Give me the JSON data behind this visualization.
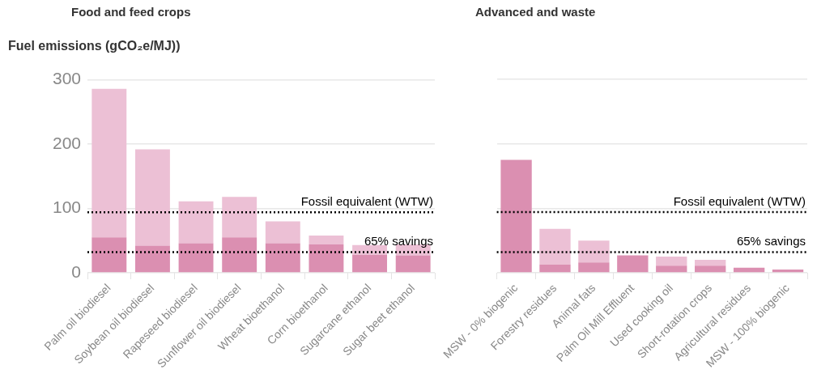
{
  "chart_data": [
    {
      "type": "bar",
      "title": "Food and feed crops",
      "ylabel": "Fuel emissions (gCO₂e/MJ))",
      "stacked": true,
      "grid": "y",
      "legend": false,
      "categories": [
        "Palm oil biodiesel",
        "Soybean oil biodiesel",
        "Rapeseed biodiesel",
        "Sunflower oil biodiesel",
        "Wheat bioethanol",
        "Corn bioethanol",
        "Sugarcane ethanol",
        "Sugar beet ethanol"
      ],
      "series": [
        {
          "color": "#db8fb1",
          "values": [
            55,
            42,
            46,
            55,
            46,
            44,
            28,
            27
          ]
        },
        {
          "color": "#ecc0d5",
          "values": [
            231,
            150,
            65,
            63,
            34,
            14,
            15,
            17
          ]
        }
      ],
      "ylim": [
        0,
        300
      ],
      "yticks": [
        0,
        100,
        200,
        300
      ],
      "ref_lines": [
        {
          "axis": "y",
          "value": 94,
          "label": "Fossil equivalent (WTW)",
          "color": "#000000",
          "line_style": "dotted"
        },
        {
          "axis": "y",
          "value": 32,
          "label": "65% savings",
          "color": "#000000",
          "line_style": "dotted"
        }
      ]
    },
    {
      "type": "bar",
      "title": "Advanced and waste",
      "stacked": true,
      "grid": "y",
      "legend": false,
      "tick_labels": "x",
      "categories": [
        "MSW - 0% biogenic",
        "Forestry residues",
        "Animal fats",
        "Palm Oil Mill Effluent",
        "Used cooking oil",
        "Short-rotation crops",
        "Agricultural residues",
        "MSW - 100% biogenic"
      ],
      "series": [
        {
          "color": "#db8fb1",
          "values": [
            175,
            13,
            16,
            27,
            11,
            11,
            8,
            5
          ]
        },
        {
          "color": "#ecc0d5",
          "values": [
            0,
            55,
            34,
            0,
            14,
            9,
            0,
            0
          ]
        }
      ],
      "ylim": [
        0,
        300
      ],
      "yticks": [
        0,
        100,
        200,
        300
      ],
      "ref_lines": [
        {
          "axis": "y",
          "value": 94,
          "label": "Fossil equivalent (WTW)",
          "color": "#000000",
          "line_style": "dotted"
        },
        {
          "axis": "y",
          "value": 32,
          "label": "65% savings",
          "color": "#000000",
          "line_style": "dotted"
        }
      ]
    }
  ]
}
